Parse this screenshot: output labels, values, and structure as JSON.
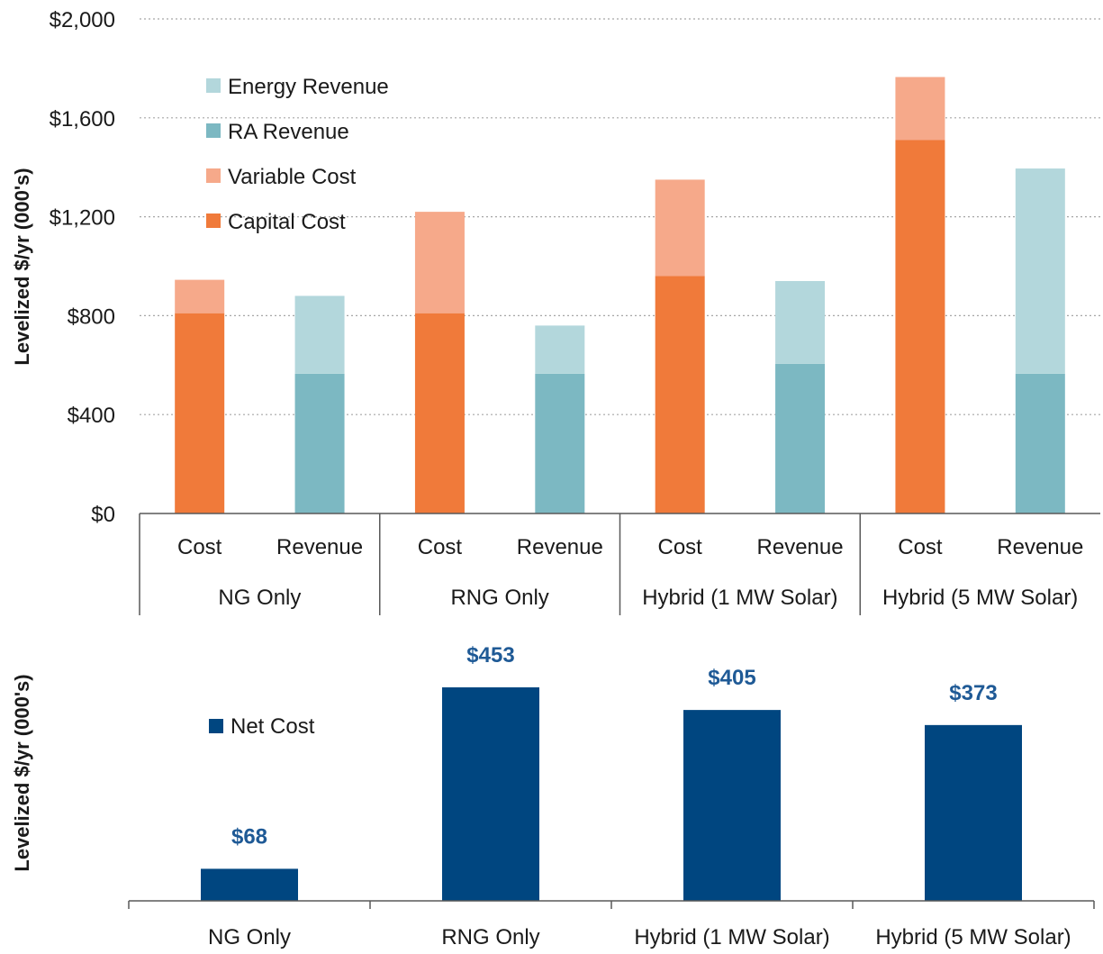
{
  "chart_data": [
    {
      "type": "bar",
      "stacked": true,
      "ylabel": "Levelized $/yr (000's)",
      "ylim": [
        0,
        2000
      ],
      "yticks": [
        "$0",
        "$400",
        "$800",
        "$1,200",
        "$1,600",
        "$2,000"
      ],
      "ytick_values": [
        0,
        400,
        800,
        1200,
        1600,
        2000
      ],
      "grid": true,
      "legend_position": "top-left",
      "groups": [
        "NG Only",
        "RNG Only",
        "Hybrid (1 MW Solar)",
        "Hybrid (5 MW Solar)"
      ],
      "bar_labels": [
        "Cost",
        "Revenue"
      ],
      "series": [
        {
          "name": "Energy Revenue",
          "color": "#b3d7dc",
          "values": [
            0,
            315,
            0,
            195,
            0,
            335,
            0,
            830
          ]
        },
        {
          "name": "RA Revenue",
          "color": "#7cb8c2",
          "values": [
            0,
            565,
            0,
            565,
            0,
            605,
            0,
            565
          ]
        },
        {
          "name": "Variable Cost",
          "color": "#f6a98a",
          "values": [
            135,
            0,
            410,
            0,
            390,
            0,
            255,
            0
          ]
        },
        {
          "name": "Capital Cost",
          "color": "#f07a3a",
          "values": [
            810,
            0,
            810,
            0,
            960,
            0,
            1510,
            0
          ]
        }
      ]
    },
    {
      "type": "bar",
      "ylabel": "Levelized $/yr (000's)",
      "categories": [
        "NG Only",
        "RNG Only",
        "Hybrid (1 MW Solar)",
        "Hybrid (5 MW Solar)"
      ],
      "series": [
        {
          "name": "Net Cost",
          "color": "#004680",
          "values": [
            68,
            453,
            405,
            373
          ]
        }
      ],
      "data_labels": [
        "$68",
        "$453",
        "$405",
        "$373"
      ],
      "label_color": "#1f5a96",
      "legend_position": "top-left"
    }
  ]
}
